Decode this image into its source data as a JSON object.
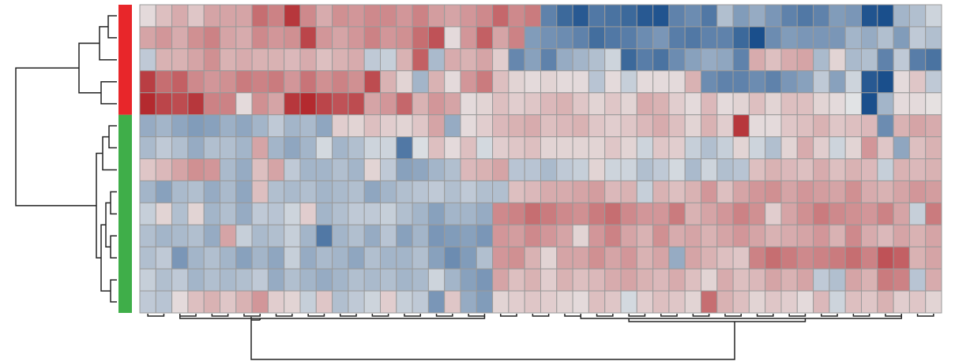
{
  "chart_data": {
    "type": "heatmap",
    "title": "",
    "xlabel": "",
    "ylabel": "",
    "color_scale": {
      "min": -3,
      "max": 3,
      "low_color": "#1a4f8c",
      "mid_color": "#e8e8e8",
      "high_color": "#b01c22"
    },
    "row_groups": [
      {
        "color": "#e8262a",
        "rows": [
          0,
          1,
          2,
          3,
          4
        ]
      },
      {
        "color": "#3fae49",
        "rows": [
          5,
          6,
          7,
          8,
          9,
          10,
          11,
          12,
          13
        ]
      }
    ],
    "column_cluster_split": 24,
    "values": [
      [
        0.2,
        0.6,
        0.9,
        0.5,
        1.0,
        1.0,
        1.0,
        1.8,
        1.5,
        2.6,
        1.4,
        0.9,
        1.3,
        1.2,
        1.4,
        1.4,
        1.2,
        1.5,
        1.1,
        1.0,
        1.2,
        1.4,
        1.9,
        1.4,
        1.6,
        -2.0,
        -2.5,
        -2.8,
        -2.2,
        -2.3,
        -2.5,
        -2.8,
        -2.9,
        -2.0,
        -1.8,
        -2.2,
        -0.8,
        -1.5,
        -1.2,
        -1.6,
        -2.0,
        -2.2,
        -2.0,
        -1.5,
        -1.6,
        -2.9,
        -3.0,
        -1.0,
        -0.8,
        -0.4
      ],
      [
        1.0,
        1.2,
        0.9,
        1.3,
        1.5,
        1.0,
        0.9,
        1.4,
        1.2,
        1.3,
        2.4,
        1.2,
        1.0,
        1.2,
        1.5,
        1.2,
        1.3,
        1.8,
        2.2,
        0.2,
        1.2,
        2.0,
        1.0,
        1.5,
        -1.5,
        -1.7,
        -1.8,
        -2.0,
        -2.4,
        -2.2,
        -2.1,
        -1.8,
        -1.6,
        -2.1,
        -2.2,
        -2.0,
        -2.0,
        -2.5,
        -3.2,
        -1.8,
        -1.5,
        -1.6,
        -1.6,
        -1.6,
        -1.0,
        -1.2,
        -0.8,
        -1.5,
        -0.6,
        -0.8
      ],
      [
        -0.6,
        0.8,
        0.8,
        1.0,
        1.3,
        0.8,
        0.9,
        0.8,
        0.8,
        0.7,
        0.9,
        0.6,
        0.8,
        0.9,
        -0.6,
        -0.5,
        0.8,
        2.0,
        -0.9,
        0.9,
        0.8,
        1.0,
        0.4,
        -1.9,
        -1.4,
        -2.0,
        -1.2,
        -1.0,
        -0.8,
        -0.4,
        -2.5,
        -2.1,
        -2.3,
        -1.8,
        -1.4,
        -1.2,
        -1.3,
        -2.0,
        0.9,
        0.6,
        0.9,
        1.0,
        -0.9,
        0.3,
        -0.9,
        -0.8,
        -2.0,
        -0.6,
        -2.1,
        -2.3
      ],
      [
        2.5,
        1.8,
        2.0,
        1.4,
        1.2,
        1.3,
        1.6,
        1.5,
        1.6,
        1.2,
        1.7,
        1.3,
        1.5,
        1.3,
        2.3,
        0.8,
        0.3,
        -1.0,
        0.8,
        0.2,
        1.2,
        1.6,
        0.6,
        0.3,
        0.2,
        0.3,
        0.2,
        0.2,
        -0.7,
        0.2,
        -0.5,
        0.2,
        0.2,
        0.2,
        0.8,
        -1.8,
        -2.0,
        -2.0,
        -1.8,
        -2.0,
        -1.6,
        -1.4,
        -0.6,
        -1.4,
        -0.4,
        -2.8,
        -3.0,
        0.2,
        0.5,
        -0.6
      ],
      [
        2.8,
        2.4,
        2.3,
        2.6,
        1.5,
        1.5,
        0.2,
        1.3,
        1.0,
        2.6,
        2.8,
        2.4,
        2.2,
        2.3,
        1.0,
        1.2,
        1.9,
        0.8,
        1.2,
        1.0,
        0.2,
        0.3,
        0.6,
        0.4,
        0.5,
        0.7,
        0.8,
        0.5,
        0.3,
        0.5,
        0.3,
        0.9,
        0.8,
        0.4,
        0.2,
        0.7,
        0.2,
        0.3,
        0.6,
        0.3,
        0.6,
        0.6,
        0.3,
        0.2,
        -0.1,
        -3.3,
        -1.0,
        0.2,
        0.2,
        0.1
      ],
      [
        -1.2,
        -1.0,
        -1.3,
        -1.5,
        -1.4,
        -1.1,
        -1.3,
        -1.0,
        -0.6,
        -1.0,
        -0.9,
        -1.3,
        0.4,
        0.3,
        0.6,
        0.4,
        0.3,
        0.5,
        1.0,
        -1.2,
        0.2,
        0.4,
        0.7,
        0.8,
        0.9,
        0.6,
        0.7,
        0.8,
        0.5,
        0.4,
        0.5,
        0.7,
        0.9,
        0.6,
        0.3,
        0.8,
        0.4,
        2.6,
        0.2,
        0.2,
        0.5,
        0.6,
        0.8,
        0.5,
        0.6,
        0.7,
        -1.8,
        0.8,
        1.0,
        0.9
      ],
      [
        -0.9,
        -0.6,
        -0.8,
        -1.2,
        -0.8,
        -0.8,
        -1.0,
        1.0,
        -1.0,
        -1.3,
        -1.0,
        -0.3,
        -1.0,
        -0.8,
        -0.4,
        -0.4,
        -2.2,
        -0.2,
        0.6,
        0.2,
        0.6,
        -0.3,
        0.4,
        0.5,
        0.6,
        0.3,
        0.3,
        0.3,
        0.3,
        0.5,
        0.3,
        -0.4,
        0.5,
        0.4,
        -0.5,
        -0.8,
        -0.5,
        0.3,
        -0.4,
        -0.8,
        0.3,
        0.9,
        0.4,
        -0.4,
        0.3,
        1.2,
        0.5,
        -1.3,
        0.6,
        0.8
      ],
      [
        0.5,
        0.7,
        1.0,
        1.3,
        1.2,
        -0.9,
        -1.2,
        0.6,
        1.0,
        -0.6,
        -1.0,
        -1.0,
        -0.8,
        -1.0,
        0.3,
        -0.6,
        -1.4,
        -1.3,
        -1.0,
        -0.8,
        0.7,
        0.8,
        1.0,
        -0.7,
        -0.7,
        -0.9,
        -0.6,
        -0.5,
        0.3,
        -0.4,
        -0.4,
        -0.8,
        -0.6,
        -0.3,
        -0.9,
        -0.4,
        -0.8,
        -0.7,
        0.6,
        0.8,
        0.7,
        0.6,
        0.9,
        0.6,
        0.8,
        0.7,
        -0.5,
        0.8,
        0.7,
        0.8
      ],
      [
        -1.0,
        -1.4,
        -0.9,
        -0.8,
        -1.2,
        -0.9,
        -1.3,
        0.6,
        -0.8,
        -0.9,
        -0.8,
        -1.0,
        -0.9,
        -0.8,
        -1.3,
        -1.0,
        -0.8,
        -0.7,
        -0.6,
        -0.8,
        -0.6,
        -0.8,
        -0.8,
        0.6,
        0.7,
        0.9,
        0.9,
        1.0,
        1.1,
        0.7,
        0.8,
        -0.5,
        0.8,
        0.6,
        0.8,
        1.2,
        0.6,
        1.0,
        1.2,
        1.3,
        1.0,
        1.2,
        1.1,
        1.0,
        1.3,
        0.9,
        0.8,
        1.0,
        1.2,
        1.1
      ],
      [
        -0.5,
        0.3,
        -0.8,
        0.3,
        -1.0,
        -0.8,
        -1.2,
        -0.6,
        -0.7,
        -0.4,
        0.4,
        -1.0,
        -0.8,
        -0.6,
        -0.6,
        -0.5,
        -0.8,
        -1.0,
        -1.4,
        -1.0,
        -1.0,
        -1.2,
        1.4,
        1.5,
        1.8,
        1.6,
        1.4,
        1.3,
        1.6,
        1.8,
        1.4,
        1.2,
        1.2,
        1.6,
        0.8,
        1.0,
        1.2,
        1.5,
        1.3,
        0.4,
        1.0,
        1.3,
        1.6,
        1.4,
        1.3,
        1.2,
        1.5,
        1.0,
        -0.5,
        1.6
      ],
      [
        -0.8,
        -1.0,
        -0.9,
        -0.8,
        -1.2,
        1.0,
        -0.5,
        -0.9,
        -0.8,
        -0.5,
        -1.0,
        -2.2,
        -1.0,
        -0.8,
        -1.2,
        -0.7,
        -1.4,
        -1.0,
        -1.6,
        -1.5,
        -1.4,
        -1.6,
        1.2,
        1.1,
        1.4,
        1.2,
        1.0,
        0.3,
        1.2,
        1.5,
        1.0,
        0.8,
        1.3,
        0.9,
        1.0,
        0.8,
        1.0,
        1.2,
        1.0,
        0.8,
        0.9,
        1.0,
        1.2,
        0.8,
        1.4,
        0.9,
        0.7,
        1.0,
        0.8,
        1.0
      ],
      [
        -0.8,
        -0.6,
        -1.6,
        -1.0,
        -0.8,
        -1.0,
        -1.4,
        -1.0,
        -1.3,
        -0.5,
        -1.2,
        -0.9,
        -1.0,
        -1.3,
        -0.8,
        -1.0,
        -1.0,
        -0.8,
        -1.4,
        -1.8,
        -1.5,
        -0.8,
        1.2,
        1.3,
        0.8,
        0.3,
        1.0,
        1.0,
        1.3,
        1.0,
        1.2,
        0.8,
        1.0,
        -1.2,
        1.0,
        0.8,
        0.6,
        0.5,
        1.5,
        1.8,
        1.6,
        1.4,
        1.5,
        1.6,
        1.8,
        1.5,
        2.2,
        2.0,
        0.8,
        1.0
      ],
      [
        -0.5,
        -0.8,
        -0.6,
        -1.0,
        -0.8,
        -0.9,
        -0.8,
        -0.6,
        -1.2,
        -0.8,
        -1.0,
        -1.2,
        -1.0,
        -0.8,
        -0.9,
        -0.8,
        -1.0,
        -0.9,
        -0.4,
        -1.0,
        -1.4,
        -1.6,
        1.0,
        0.6,
        0.8,
        0.4,
        0.8,
        0.6,
        0.7,
        0.9,
        1.0,
        0.8,
        0.7,
        0.9,
        0.6,
        0.3,
        0.9,
        0.6,
        0.7,
        1.0,
        0.8,
        1.0,
        -0.6,
        -0.8,
        1.0,
        0.8,
        1.6,
        1.5,
        -0.7,
        0.9
      ],
      [
        -0.6,
        -0.7,
        0.2,
        0.6,
        0.8,
        0.5,
        0.8,
        1.2,
        0.4,
        0.3,
        -0.5,
        0.5,
        -0.8,
        -0.6,
        -0.4,
        0.4,
        -0.5,
        -0.6,
        -1.6,
        0.5,
        -1.2,
        -1.5,
        0.3,
        0.4,
        0.5,
        0.4,
        0.3,
        0.2,
        0.6,
        0.5,
        -0.3,
        0.4,
        0.6,
        0.5,
        0.3,
        1.8,
        0.8,
        0.6,
        0.3,
        0.5,
        0.4,
        0.2,
        0.7,
        -0.4,
        0.6,
        0.5,
        0.8,
        0.4,
        0.5,
        0.3
      ]
    ]
  }
}
